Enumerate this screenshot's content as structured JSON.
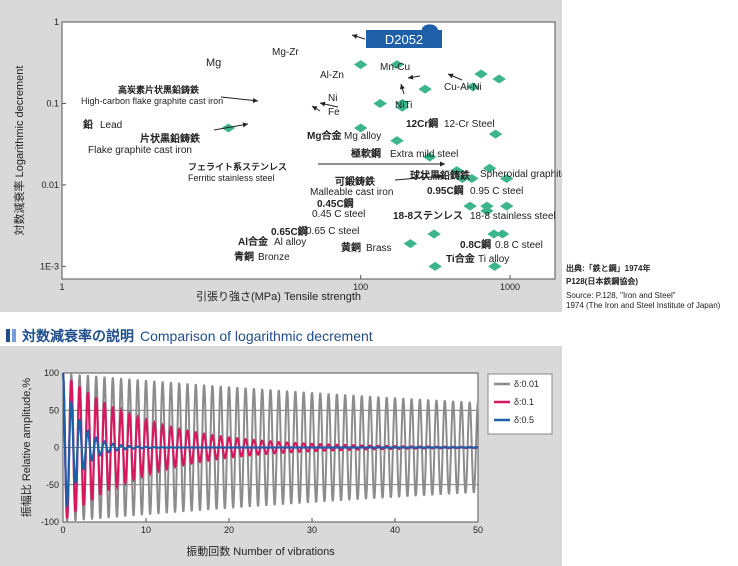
{
  "chart_data": [
    {
      "type": "scatter",
      "title": "",
      "xlabel": "引張り強さ(MPa) Tensile strength",
      "ylabel": "対数減衰率 Logarithmic decrement",
      "x_scale": "log",
      "y_scale": "log",
      "xlim": [
        1,
        2000
      ],
      "ylim": [
        0.0007,
        1
      ],
      "x_ticks": [
        {
          "v": 1,
          "label": "1"
        },
        {
          "v": 100,
          "label": "100"
        },
        {
          "v": 1000,
          "label": "1000"
        }
      ],
      "y_ticks": [
        {
          "v": 1,
          "label": "1"
        },
        {
          "v": 0.1,
          "label": "0.1"
        },
        {
          "v": 0.01,
          "label": "0.01"
        },
        {
          "v": 0.001,
          "label": "1E-3"
        }
      ],
      "highlight": {
        "x": 290,
        "y": 0.8,
        "label": "D2052"
      },
      "points": [
        {
          "x": 100,
          "y": 0.3
        },
        {
          "x": 175,
          "y": 0.3
        },
        {
          "x": 270,
          "y": 0.15
        },
        {
          "x": 640,
          "y": 0.23
        },
        {
          "x": 845,
          "y": 0.2
        },
        {
          "x": 565,
          "y": 0.16
        },
        {
          "x": 135,
          "y": 0.1
        },
        {
          "x": 190,
          "y": 0.1
        },
        {
          "x": 190,
          "y": 0.09
        },
        {
          "x": 13,
          "y": 0.05
        },
        {
          "x": 100,
          "y": 0.05
        },
        {
          "x": 175,
          "y": 0.035
        },
        {
          "x": 800,
          "y": 0.042
        },
        {
          "x": 290,
          "y": 0.022
        },
        {
          "x": 440,
          "y": 0.015
        },
        {
          "x": 730,
          "y": 0.016
        },
        {
          "x": 480,
          "y": 0.012
        },
        {
          "x": 555,
          "y": 0.012
        },
        {
          "x": 950,
          "y": 0.012
        },
        {
          "x": 540,
          "y": 0.0055
        },
        {
          "x": 700,
          "y": 0.0055
        },
        {
          "x": 950,
          "y": 0.0055
        },
        {
          "x": 700,
          "y": 0.0048
        },
        {
          "x": 780,
          "y": 0.0025
        },
        {
          "x": 890,
          "y": 0.0025
        },
        {
          "x": 310,
          "y": 0.0025
        },
        {
          "x": 215,
          "y": 0.0019
        },
        {
          "x": 315,
          "y": 0.001
        },
        {
          "x": 790,
          "y": 0.001
        }
      ],
      "annotations": [
        {
          "text": "Mg"
        },
        {
          "text": "Mg-Zr"
        },
        {
          "text": "Al-Zn"
        },
        {
          "text": "Mn-Cu"
        },
        {
          "text": "Cu-Al-Ni"
        },
        {
          "text": "Ni"
        },
        {
          "text": "Fe"
        },
        {
          "text": "NiTi"
        },
        {
          "text": "高炭素片状黒鉛鋳鉄"
        },
        {
          "text": "High-carbon flake graphite cast iron"
        },
        {
          "text": "鉛"
        },
        {
          "text": "Lead"
        },
        {
          "text": "片状黒鉛鋳鉄"
        },
        {
          "text": "Flake graphite cast iron"
        },
        {
          "text": "Mg合金"
        },
        {
          "text": "Mg alloy"
        },
        {
          "text": "12Cr鋼"
        },
        {
          "text": "12-Cr Steel"
        },
        {
          "text": "フェライト系ステンレス"
        },
        {
          "text": "Ferritic stainless steel"
        },
        {
          "text": "極軟鋼"
        },
        {
          "text": "Extra mild steel"
        },
        {
          "text": "球状黒鉛鋳鉄"
        },
        {
          "text": "Spheroidal graphite cast iron"
        },
        {
          "text": "可鍛鋳鉄"
        },
        {
          "text": "Malleable cast iron"
        },
        {
          "text": "0.95C鋼"
        },
        {
          "text": "0.95 C steel"
        },
        {
          "text": "0.45C鋼"
        },
        {
          "text": "0.45 C steel"
        },
        {
          "text": "18-8ステンレス"
        },
        {
          "text": "18-8 stainless steel"
        },
        {
          "text": "0.65C鋼"
        },
        {
          "text": "0.65 C steel"
        },
        {
          "text": "0.8C鋼"
        },
        {
          "text": "0.8 C steel"
        },
        {
          "text": "Al合金"
        },
        {
          "text": "Al alloy"
        },
        {
          "text": "黄銅"
        },
        {
          "text": "Brass"
        },
        {
          "text": "青銅"
        },
        {
          "text": "Bronze"
        },
        {
          "text": "Ti合金"
        },
        {
          "text": "Ti alloy"
        }
      ]
    },
    {
      "type": "line",
      "title": "",
      "xlabel": "振動回数 Number of vibrations",
      "ylabel": "振幅比 Relative amplitude,%",
      "xlim": [
        0,
        50
      ],
      "ylim": [
        -100,
        100
      ],
      "x_ticks": [
        0,
        10,
        20,
        30,
        40,
        50
      ],
      "y_ticks": [
        100,
        50,
        0,
        -50,
        -100
      ],
      "grid": true,
      "legend_position": "right",
      "series": [
        {
          "name": "δ:0.01",
          "delta": 0.01,
          "color": "#8c8c8c"
        },
        {
          "name": "δ:0.1",
          "delta": 0.1,
          "color": "#d6185e"
        },
        {
          "name": "δ:0.5",
          "delta": 0.5,
          "color": "#1f5fa8"
        }
      ]
    }
  ],
  "source": {
    "line1": "出典:「鉄と鋼」1974年",
    "line2": "P128(日本鉄鋼協会)",
    "line3": "Source:  P.128, \"Iron and Steel\"",
    "line4": "1974 (The Iron and Steel Institute of Japan)"
  },
  "section": {
    "title_jp": "対数減衰率の説明",
    "title_en": "Comparison of logarithmic decrement"
  },
  "colors": {
    "point": "#3cb48c",
    "highlight": "#1f5fa8",
    "panel": "#d9d9d9"
  }
}
